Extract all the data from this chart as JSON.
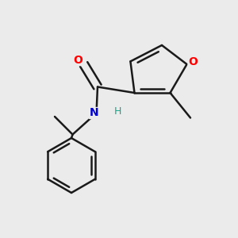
{
  "background_color": "#ebebeb",
  "bond_color": "#1a1a1a",
  "bond_width": 1.8,
  "atom_labels": {
    "O_furan": {
      "color": "#ff0000",
      "fontsize": 10,
      "fontweight": "bold"
    },
    "O_carbonyl": {
      "color": "#ff0000",
      "fontsize": 10,
      "fontweight": "bold"
    },
    "N": {
      "color": "#0000cc",
      "fontsize": 10,
      "fontweight": "bold"
    },
    "H": {
      "color": "#17a589",
      "fontsize": 9,
      "fontweight": "normal"
    }
  },
  "figsize": [
    3.0,
    3.0
  ],
  "dpi": 100,
  "xlim": [
    0.0,
    1.0
  ],
  "ylim": [
    0.0,
    1.0
  ]
}
